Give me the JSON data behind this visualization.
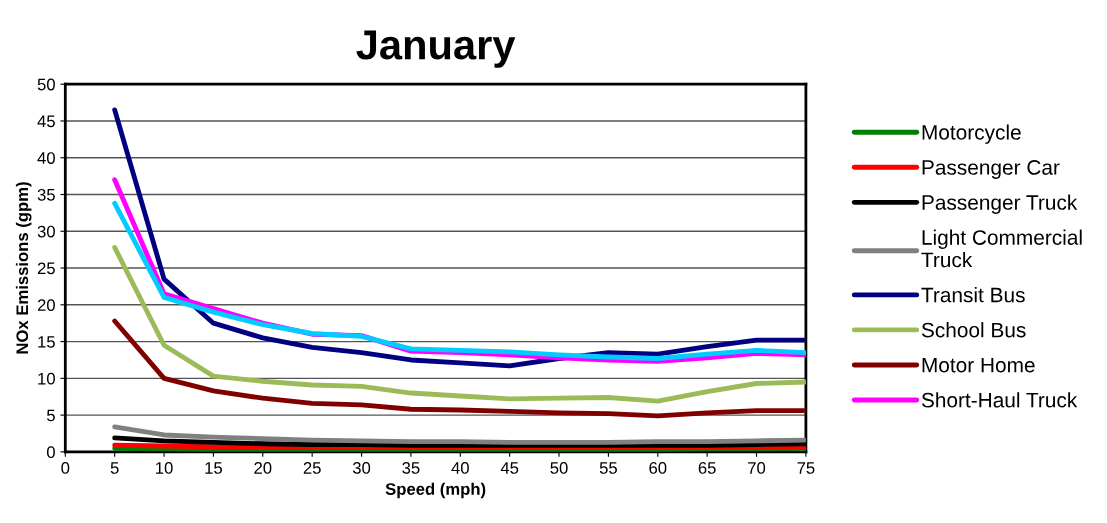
{
  "chart_data": {
    "type": "line",
    "title": "January",
    "xlabel": "Speed (mph)",
    "ylabel": "NOx Emissions (gpm)",
    "x": [
      5,
      10,
      15,
      20,
      25,
      30,
      35,
      40,
      45,
      50,
      55,
      60,
      65,
      70,
      75
    ],
    "xlim": [
      0,
      75
    ],
    "xticks": [
      0,
      5,
      10,
      15,
      20,
      25,
      30,
      35,
      40,
      45,
      50,
      55,
      60,
      65,
      70,
      75
    ],
    "ylim": [
      0,
      50
    ],
    "yticks": [
      0,
      5,
      10,
      15,
      20,
      25,
      30,
      35,
      40,
      45,
      50
    ],
    "grid": "y",
    "legend": "right",
    "line_style": "solid",
    "marker": "none",
    "series": [
      {
        "name": "Motorcycle",
        "color": "#008000",
        "values": [
          0.5,
          0.4,
          0.3,
          0.3,
          0.3,
          0.3,
          0.3,
          0.3,
          0.3,
          0.3,
          0.3,
          0.3,
          0.4,
          0.4,
          0.5
        ]
      },
      {
        "name": "Passenger Car",
        "color": "#ff0000",
        "values": [
          0.9,
          0.8,
          0.7,
          0.6,
          0.6,
          0.6,
          0.6,
          0.6,
          0.6,
          0.6,
          0.6,
          0.6,
          0.6,
          0.7,
          0.7
        ]
      },
      {
        "name": "Passenger Truck",
        "color": "#000000",
        "values": [
          1.9,
          1.5,
          1.3,
          1.1,
          1.0,
          1.0,
          0.9,
          0.9,
          0.9,
          0.9,
          0.9,
          0.9,
          0.9,
          1.0,
          1.1
        ]
      },
      {
        "name": "Light Commercial Truck",
        "color": "#808080",
        "values": [
          3.4,
          2.3,
          2.0,
          1.8,
          1.6,
          1.5,
          1.4,
          1.4,
          1.3,
          1.3,
          1.3,
          1.4,
          1.4,
          1.5,
          1.6
        ]
      },
      {
        "name": "Transit Bus",
        "color": "#000080",
        "values": [
          46.5,
          23.5,
          17.5,
          15.5,
          14.2,
          13.5,
          12.5,
          12.1,
          11.7,
          12.7,
          13.5,
          13.3,
          14.3,
          15.2,
          15.2
        ]
      },
      {
        "name": "School Bus",
        "color": "#9bbb59",
        "values": [
          27.8,
          14.5,
          10.3,
          9.6,
          9.1,
          8.9,
          8.0,
          7.6,
          7.2,
          7.3,
          7.4,
          6.9,
          8.2,
          9.3,
          9.5
        ]
      },
      {
        "name": "Motor Home",
        "color": "#800000",
        "values": [
          17.8,
          10.0,
          8.3,
          7.3,
          6.6,
          6.4,
          5.8,
          5.7,
          5.5,
          5.3,
          5.2,
          4.9,
          5.3,
          5.6,
          5.6
        ]
      },
      {
        "name": "Short-Haul Truck",
        "color": "#ff00ff",
        "values": [
          37.0,
          21.5,
          19.5,
          17.5,
          16.0,
          15.8,
          13.7,
          13.5,
          13.2,
          12.8,
          12.5,
          12.3,
          12.8,
          13.4,
          13.2
        ]
      },
      {
        "color": "#00ccff",
        "values": [
          33.8,
          21.0,
          19.0,
          17.3,
          16.1,
          15.7,
          14.0,
          13.8,
          13.6,
          13.2,
          12.9,
          12.7,
          13.3,
          13.8,
          13.5
        ]
      }
    ]
  }
}
